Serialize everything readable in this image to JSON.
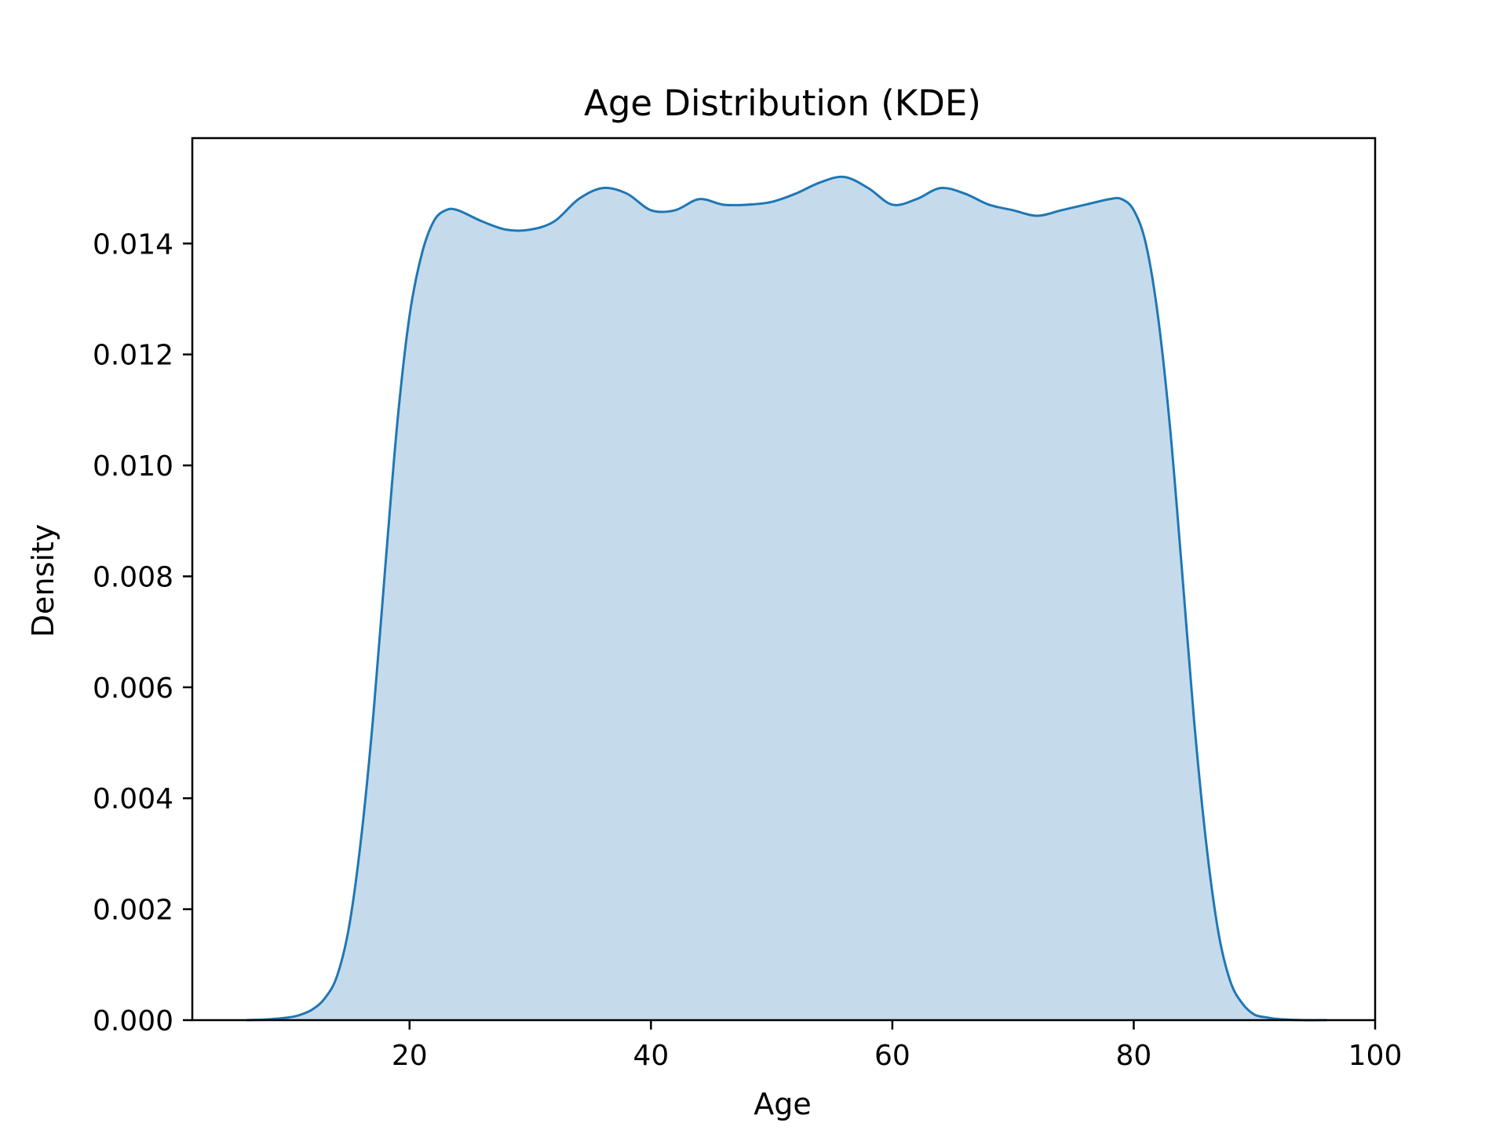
{
  "chart_data": {
    "type": "area",
    "title": "Age Distribution (KDE)",
    "xlabel": "Age",
    "ylabel": "Density",
    "xlim": [
      2,
      100
    ],
    "ylim": [
      0,
      0.0159
    ],
    "x_ticks": [
      20,
      40,
      60,
      80,
      100
    ],
    "x_tick_labels": [
      "20",
      "40",
      "60",
      "80",
      "100"
    ],
    "y_ticks": [
      0,
      0.002,
      0.004,
      0.006,
      0.008,
      0.01,
      0.012,
      0.014
    ],
    "y_tick_labels": [
      "0.000",
      "0.002",
      "0.004",
      "0.006",
      "0.008",
      "0.010",
      "0.012",
      "0.014"
    ],
    "grid": false,
    "colors": {
      "line": "#1f77b4",
      "fill": "#c5dbec",
      "axes": "#000000"
    },
    "x": [
      6.5,
      8,
      10,
      11,
      12,
      13,
      14,
      15,
      16,
      17,
      18,
      19,
      20,
      21,
      22,
      23,
      24,
      26,
      28,
      30,
      32,
      34,
      36,
      38,
      40,
      42,
      44,
      46,
      48,
      50,
      52,
      54,
      56,
      58,
      60,
      62,
      64,
      66,
      68,
      70,
      72,
      74,
      76,
      78,
      79,
      80,
      81,
      82,
      83,
      84,
      85,
      86,
      87,
      88,
      89,
      90,
      91,
      92,
      94,
      96
    ],
    "y": [
      0.0,
      1e-05,
      5e-05,
      0.0001,
      0.0002,
      0.0004,
      0.0008,
      0.0017,
      0.0033,
      0.0055,
      0.0082,
      0.0108,
      0.0127,
      0.0138,
      0.0144,
      0.0146,
      0.0146,
      0.0144,
      0.01425,
      0.01425,
      0.0144,
      0.0148,
      0.015,
      0.0149,
      0.0146,
      0.0146,
      0.0148,
      0.0147,
      0.0147,
      0.01475,
      0.0149,
      0.0151,
      0.0152,
      0.015,
      0.0147,
      0.0148,
      0.015,
      0.0149,
      0.0147,
      0.0146,
      0.0145,
      0.0146,
      0.0147,
      0.0148,
      0.0148,
      0.0146,
      0.014,
      0.0127,
      0.0107,
      0.0081,
      0.0054,
      0.0032,
      0.0016,
      0.0007,
      0.0003,
      0.0001,
      5e-05,
      2e-05,
      0.0,
      0.0
    ]
  }
}
